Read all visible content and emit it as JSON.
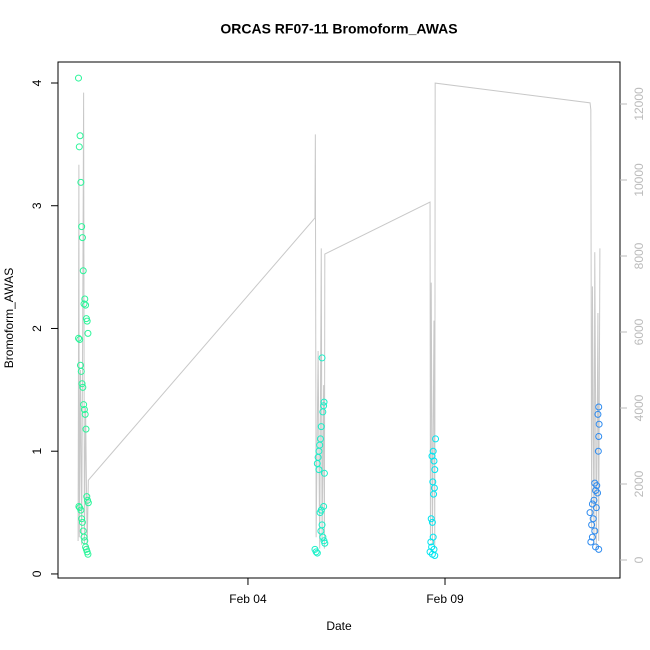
{
  "chart_data": {
    "type": "scatter",
    "title": "ORCAS RF07-11 Bromoform_AWAS",
    "x_label": "Date",
    "y_label": "Bromoform_AWAS",
    "xlim": [
      -0.82,
      13.44
    ],
    "xticks": [
      {
        "value": 4,
        "label": "Feb 04"
      },
      {
        "value": 9,
        "label": "Feb 09"
      }
    ],
    "ylim": [
      -0.033,
      4.171
    ],
    "yticks": [
      0,
      1,
      2,
      3,
      4
    ],
    "y2lim": [
      -474,
      13105
    ],
    "y2ticks": [
      0,
      2000,
      4000,
      6000,
      8000,
      10000,
      12000
    ],
    "y2_color": "#bbbbbb",
    "series": [
      {
        "color": "#2bf59a",
        "x": [
          -0.3,
          -0.28,
          -0.26,
          -0.24,
          -0.22,
          -0.2,
          -0.18,
          -0.16,
          -0.14,
          -0.12,
          -0.1,
          -0.08,
          -0.06,
          -0.3,
          -0.27,
          -0.25,
          -0.23,
          -0.21,
          -0.19,
          -0.17,
          -0.15,
          -0.13,
          -0.11,
          -0.09,
          -0.07,
          -0.05,
          -0.29,
          -0.27,
          -0.24,
          -0.22,
          -0.2,
          -0.18,
          -0.16,
          -0.14,
          -0.12,
          -0.1,
          -0.08,
          -0.06
        ],
        "values": [
          4.04,
          3.48,
          3.57,
          3.19,
          2.83,
          2.74,
          2.47,
          2.2,
          2.24,
          2.19,
          2.08,
          2.06,
          1.96,
          1.92,
          1.91,
          1.7,
          1.65,
          1.55,
          1.52,
          1.38,
          1.34,
          1.3,
          1.18,
          0.63,
          0.6,
          0.58,
          0.55,
          0.54,
          0.52,
          0.45,
          0.42,
          0.35,
          0.3,
          0.27,
          0.22,
          0.2,
          0.18,
          0.16
        ]
      },
      {
        "color": "#19f0c8",
        "x": [
          5.88,
          5.93,
          5.92,
          5.9,
          5.86,
          5.84,
          5.82,
          5.8,
          5.78,
          5.76,
          5.8,
          5.94,
          5.92,
          5.86,
          5.83,
          5.88,
          5.85,
          5.9,
          5.93,
          5.95,
          5.7,
          5.73,
          5.76
        ],
        "values": [
          1.76,
          1.4,
          1.37,
          1.32,
          1.2,
          1.1,
          1.05,
          1.0,
          0.95,
          0.9,
          0.85,
          0.82,
          0.55,
          0.52,
          0.5,
          0.4,
          0.35,
          0.3,
          0.27,
          0.25,
          0.2,
          0.18,
          0.17
        ]
      },
      {
        "color": "#00e5f0",
        "x": [
          8.76,
          8.7,
          8.67,
          8.72,
          8.74,
          8.69,
          8.73,
          8.71,
          8.65,
          8.68,
          8.7,
          8.64,
          8.66,
          8.72,
          8.62,
          8.68,
          8.74
        ],
        "values": [
          1.1,
          1.0,
          0.96,
          0.92,
          0.85,
          0.75,
          0.7,
          0.65,
          0.45,
          0.42,
          0.3,
          0.26,
          0.22,
          0.2,
          0.18,
          0.16,
          0.15
        ]
      },
      {
        "color": "#2e8bef",
        "x": [
          12.9,
          12.88,
          12.91,
          12.9,
          12.89,
          12.8,
          12.85,
          12.82,
          12.87,
          12.78,
          12.74,
          12.84,
          12.68,
          12.76,
          12.72,
          12.8,
          12.74,
          12.7,
          12.82,
          12.9
        ],
        "values": [
          1.36,
          1.3,
          1.22,
          1.12,
          1.0,
          0.74,
          0.72,
          0.68,
          0.66,
          0.6,
          0.57,
          0.54,
          0.5,
          0.45,
          0.4,
          0.35,
          0.3,
          0.26,
          0.22,
          0.2
        ]
      },
      {
        "type": "line",
        "axis": "y2",
        "color": "#c8c8c8",
        "x": [
          -0.31,
          -0.29,
          -0.28,
          -0.25,
          -0.22,
          -0.19,
          -0.17,
          -0.15,
          -0.12,
          -0.08,
          -0.05,
          5.7,
          5.71,
          5.73,
          5.78,
          5.82,
          5.86,
          5.88,
          5.92,
          5.94,
          5.95,
          8.62,
          8.63,
          8.65,
          8.68,
          8.72,
          8.74,
          8.75,
          12.68,
          12.7,
          12.72,
          12.74,
          12.78,
          12.8,
          12.84,
          12.88,
          12.9,
          12.93
        ],
        "values": [
          500,
          10400,
          600,
          5000,
          400,
          7000,
          12300,
          400,
          4000,
          300,
          2100,
          9000,
          11200,
          600,
          5500,
          300,
          8200,
          500,
          4600,
          300,
          8050,
          9420,
          500,
          7300,
          400,
          6300,
          300,
          12550,
          12030,
          11850,
          800,
          7200,
          400,
          8100,
          300,
          6500,
          500,
          8200
        ]
      }
    ]
  }
}
